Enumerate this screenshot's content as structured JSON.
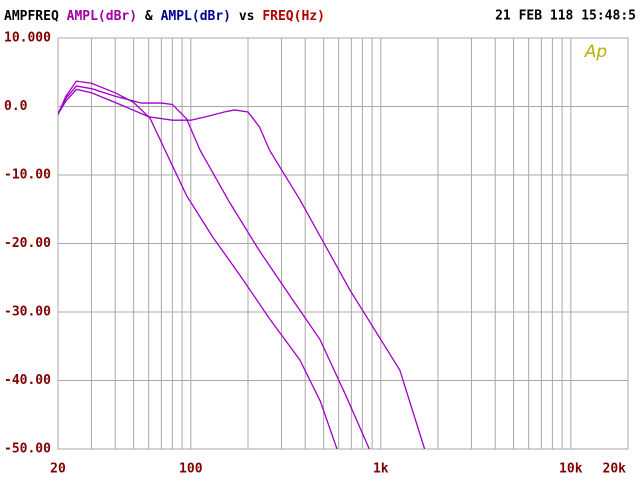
{
  "chart_data": {
    "type": "line",
    "header": [
      {
        "text": "AMPFREQ",
        "color": "#000000"
      },
      {
        "text": "AMPL(dBr)",
        "color": "#a000a0"
      },
      {
        "text": "&",
        "color": "#000000"
      },
      {
        "text": "AMPL(dBr)",
        "color": "#000090"
      },
      {
        "text": "vs",
        "color": "#000000"
      },
      {
        "text": "FREQ(Hz)",
        "color": "#b00000"
      }
    ],
    "timestamp": "21 FEB 118 15:48:5",
    "logo": "Ap",
    "xscale": "log",
    "xlim": [
      20,
      20000
    ],
    "xticks": [
      20,
      100,
      {
        "value": 1000,
        "label": "1k"
      },
      {
        "value": 10000,
        "label": "10k"
      },
      {
        "value": 20000,
        "label": "20k"
      }
    ],
    "xgrid": [
      30,
      40,
      50,
      60,
      70,
      80,
      90,
      200,
      300,
      400,
      500,
      600,
      700,
      800,
      900,
      2000,
      3000,
      4000,
      5000,
      6000,
      7000,
      8000,
      9000
    ],
    "ylim": [
      -50,
      10
    ],
    "yticks": [
      {
        "value": 10,
        "label": "10.000"
      },
      {
        "value": 0,
        "label": "0.0"
      },
      {
        "value": -10,
        "label": "-10.00"
      },
      {
        "value": -20,
        "label": "-20.00"
      },
      {
        "value": -30,
        "label": "-30.00"
      },
      {
        "value": -40,
        "label": "-40.00"
      },
      {
        "value": -50,
        "label": "-50.00"
      }
    ],
    "grid": true,
    "tick_color": "#800000",
    "series": [
      {
        "color": "#a000c8",
        "x": [
          20,
          22,
          25,
          30,
          40,
          50,
          61,
          75,
          95,
          130,
          181,
          260,
          375,
          480,
          588
        ],
        "values": [
          -1.2,
          1.5,
          3.7,
          3.4,
          2.0,
          0.6,
          -1.7,
          -7,
          -13,
          -19,
          -24.6,
          -31,
          -37,
          -43,
          -50
        ]
      },
      {
        "color": "#a000c8",
        "x": [
          20,
          22,
          25,
          30,
          40,
          55,
          70,
          80,
          95,
          112,
          160,
          229,
          330,
          478,
          650,
          870
        ],
        "values": [
          -1.0,
          1.2,
          3.0,
          2.6,
          1.5,
          0.5,
          0.5,
          0.3,
          -1.8,
          -6.4,
          -14,
          -21,
          -27.5,
          -34,
          -42,
          -50
        ]
      },
      {
        "color": "#a000c8",
        "x": [
          20,
          22,
          25,
          30,
          45,
          60,
          80,
          100,
          120,
          150,
          170,
          200,
          230,
          260,
          375,
          688,
          1260,
          1700
        ],
        "values": [
          -1.1,
          0.8,
          2.5,
          2.0,
          0.0,
          -1.5,
          -2.0,
          -2.0,
          -1.5,
          -0.8,
          -0.5,
          -0.8,
          -3,
          -6.4,
          -13.6,
          -26.8,
          -38.5,
          -50
        ]
      }
    ]
  }
}
